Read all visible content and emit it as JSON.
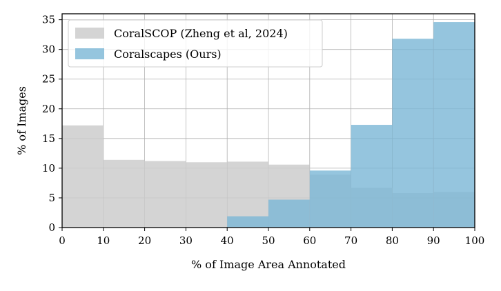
{
  "chart_data": {
    "type": "bar",
    "subtype": "histogram",
    "title": "",
    "xlabel": "% of Image Area Annotated",
    "ylabel": "% of Images",
    "xlim": [
      0,
      100
    ],
    "ylim": [
      0,
      36
    ],
    "xticks": [
      "0",
      "10",
      "20",
      "30",
      "40",
      "50",
      "60",
      "70",
      "80",
      "90",
      "100"
    ],
    "yticks": [
      "0",
      "5",
      "10",
      "15",
      "20",
      "25",
      "30",
      "35"
    ],
    "bins": [
      [
        0,
        10
      ],
      [
        10,
        20
      ],
      [
        20,
        30
      ],
      [
        30,
        40
      ],
      [
        40,
        50
      ],
      [
        50,
        60
      ],
      [
        60,
        70
      ],
      [
        70,
        80
      ],
      [
        80,
        90
      ],
      [
        90,
        100
      ]
    ],
    "grid": true,
    "legend_position": "top-left",
    "series": [
      {
        "name": "CoralSCOP (Zheng et al, 2024)",
        "color": "#cccccc",
        "opacity": 0.85,
        "values": [
          17.2,
          11.4,
          11.2,
          11.0,
          11.1,
          10.6,
          8.9,
          6.7,
          5.8,
          6.0
        ]
      },
      {
        "name": "Coralscapes (Ours)",
        "color": "#7ab7d6",
        "opacity": 0.8,
        "values": [
          0,
          0,
          0,
          0,
          1.9,
          4.7,
          9.6,
          17.3,
          31.8,
          34.6
        ]
      }
    ]
  }
}
